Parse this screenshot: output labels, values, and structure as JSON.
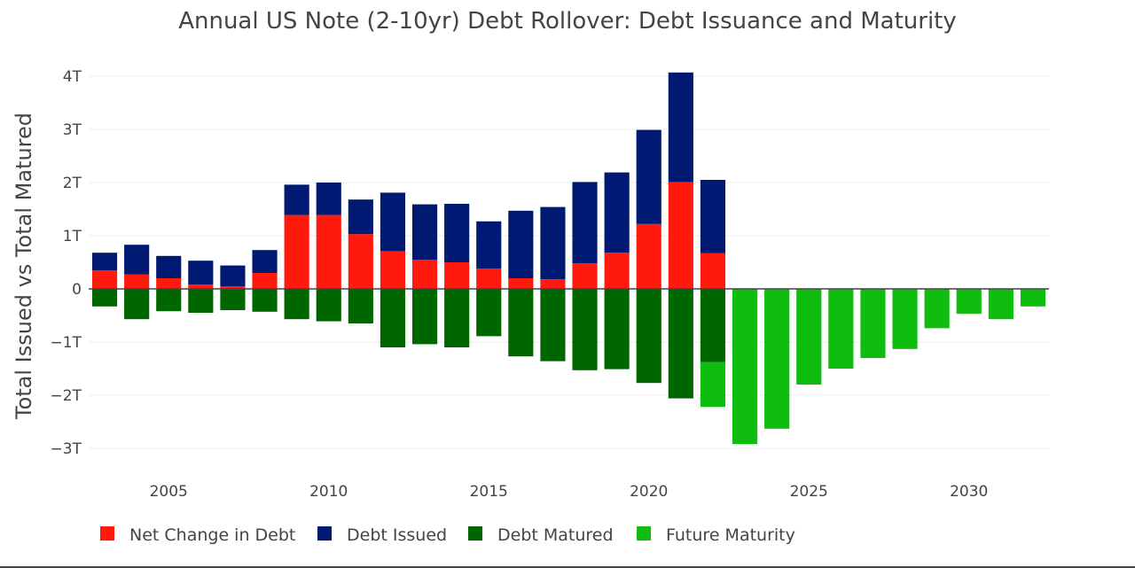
{
  "chart_data": {
    "type": "bar",
    "barmode": "relative",
    "title": "Annual US Note (2-10yr) Debt Rollover: Debt Issuance and Maturity",
    "ylabel": "Total Issued vs Total Matured",
    "xlabel": "",
    "ylim": [
      -3.3,
      4.1
    ],
    "xlim": [
      2002.5,
      2032.5
    ],
    "y_ticks": [
      {
        "value": 4,
        "label": "4T"
      },
      {
        "value": 3,
        "label": "3T"
      },
      {
        "value": 2,
        "label": "2T"
      },
      {
        "value": 1,
        "label": "1T"
      },
      {
        "value": 0,
        "label": "0"
      },
      {
        "value": -1,
        "label": "−1T"
      },
      {
        "value": -2,
        "label": "−2T"
      },
      {
        "value": -3,
        "label": "−3T"
      }
    ],
    "x_ticks": [
      {
        "value": 2005,
        "label": "2005"
      },
      {
        "value": 2010,
        "label": "2010"
      },
      {
        "value": 2015,
        "label": "2015"
      },
      {
        "value": 2020,
        "label": "2020"
      },
      {
        "value": 2025,
        "label": "2025"
      },
      {
        "value": 2030,
        "label": "2030"
      }
    ],
    "grid": true,
    "legend_position": "bottom",
    "series": [
      {
        "name": "Net Change in Debt",
        "color": "#ff1a0d",
        "x": [
          2003,
          2004,
          2005,
          2006,
          2007,
          2008,
          2009,
          2010,
          2011,
          2012,
          2013,
          2014,
          2015,
          2016,
          2017,
          2018,
          2019,
          2020,
          2021,
          2022
        ],
        "values": [
          0.35,
          0.27,
          0.2,
          0.08,
          0.05,
          0.3,
          1.39,
          1.39,
          1.03,
          0.71,
          0.55,
          0.5,
          0.38,
          0.2,
          0.18,
          0.48,
          0.68,
          1.22,
          2.01,
          0.67
        ]
      },
      {
        "name": "Debt Issued",
        "color": "#001a73",
        "x": [
          2003,
          2004,
          2005,
          2006,
          2007,
          2008,
          2009,
          2010,
          2011,
          2012,
          2013,
          2014,
          2015,
          2016,
          2017,
          2018,
          2019,
          2020,
          2021,
          2022
        ],
        "values": [
          0.33,
          0.56,
          0.42,
          0.45,
          0.39,
          0.43,
          0.57,
          0.61,
          0.65,
          1.1,
          1.04,
          1.1,
          0.89,
          1.27,
          1.36,
          1.53,
          1.51,
          1.77,
          2.06,
          1.38
        ]
      },
      {
        "name": "Debt Matured",
        "color": "#006600",
        "x": [
          2003,
          2004,
          2005,
          2006,
          2007,
          2008,
          2009,
          2010,
          2011,
          2012,
          2013,
          2014,
          2015,
          2016,
          2017,
          2018,
          2019,
          2020,
          2021,
          2022
        ],
        "values": [
          -0.33,
          -0.57,
          -0.42,
          -0.45,
          -0.4,
          -0.43,
          -0.57,
          -0.61,
          -0.65,
          -1.1,
          -1.04,
          -1.1,
          -0.89,
          -1.27,
          -1.36,
          -1.53,
          -1.51,
          -1.77,
          -2.06,
          -1.38
        ]
      },
      {
        "name": "Future Maturity",
        "color": "#0fbd0f",
        "x": [
          2022,
          2023,
          2024,
          2025,
          2026,
          2027,
          2028,
          2029,
          2030,
          2031,
          2032
        ],
        "values": [
          -0.84,
          -2.92,
          -2.63,
          -1.8,
          -1.5,
          -1.3,
          -1.13,
          -0.74,
          -0.47,
          -0.57,
          -0.33
        ]
      }
    ]
  }
}
